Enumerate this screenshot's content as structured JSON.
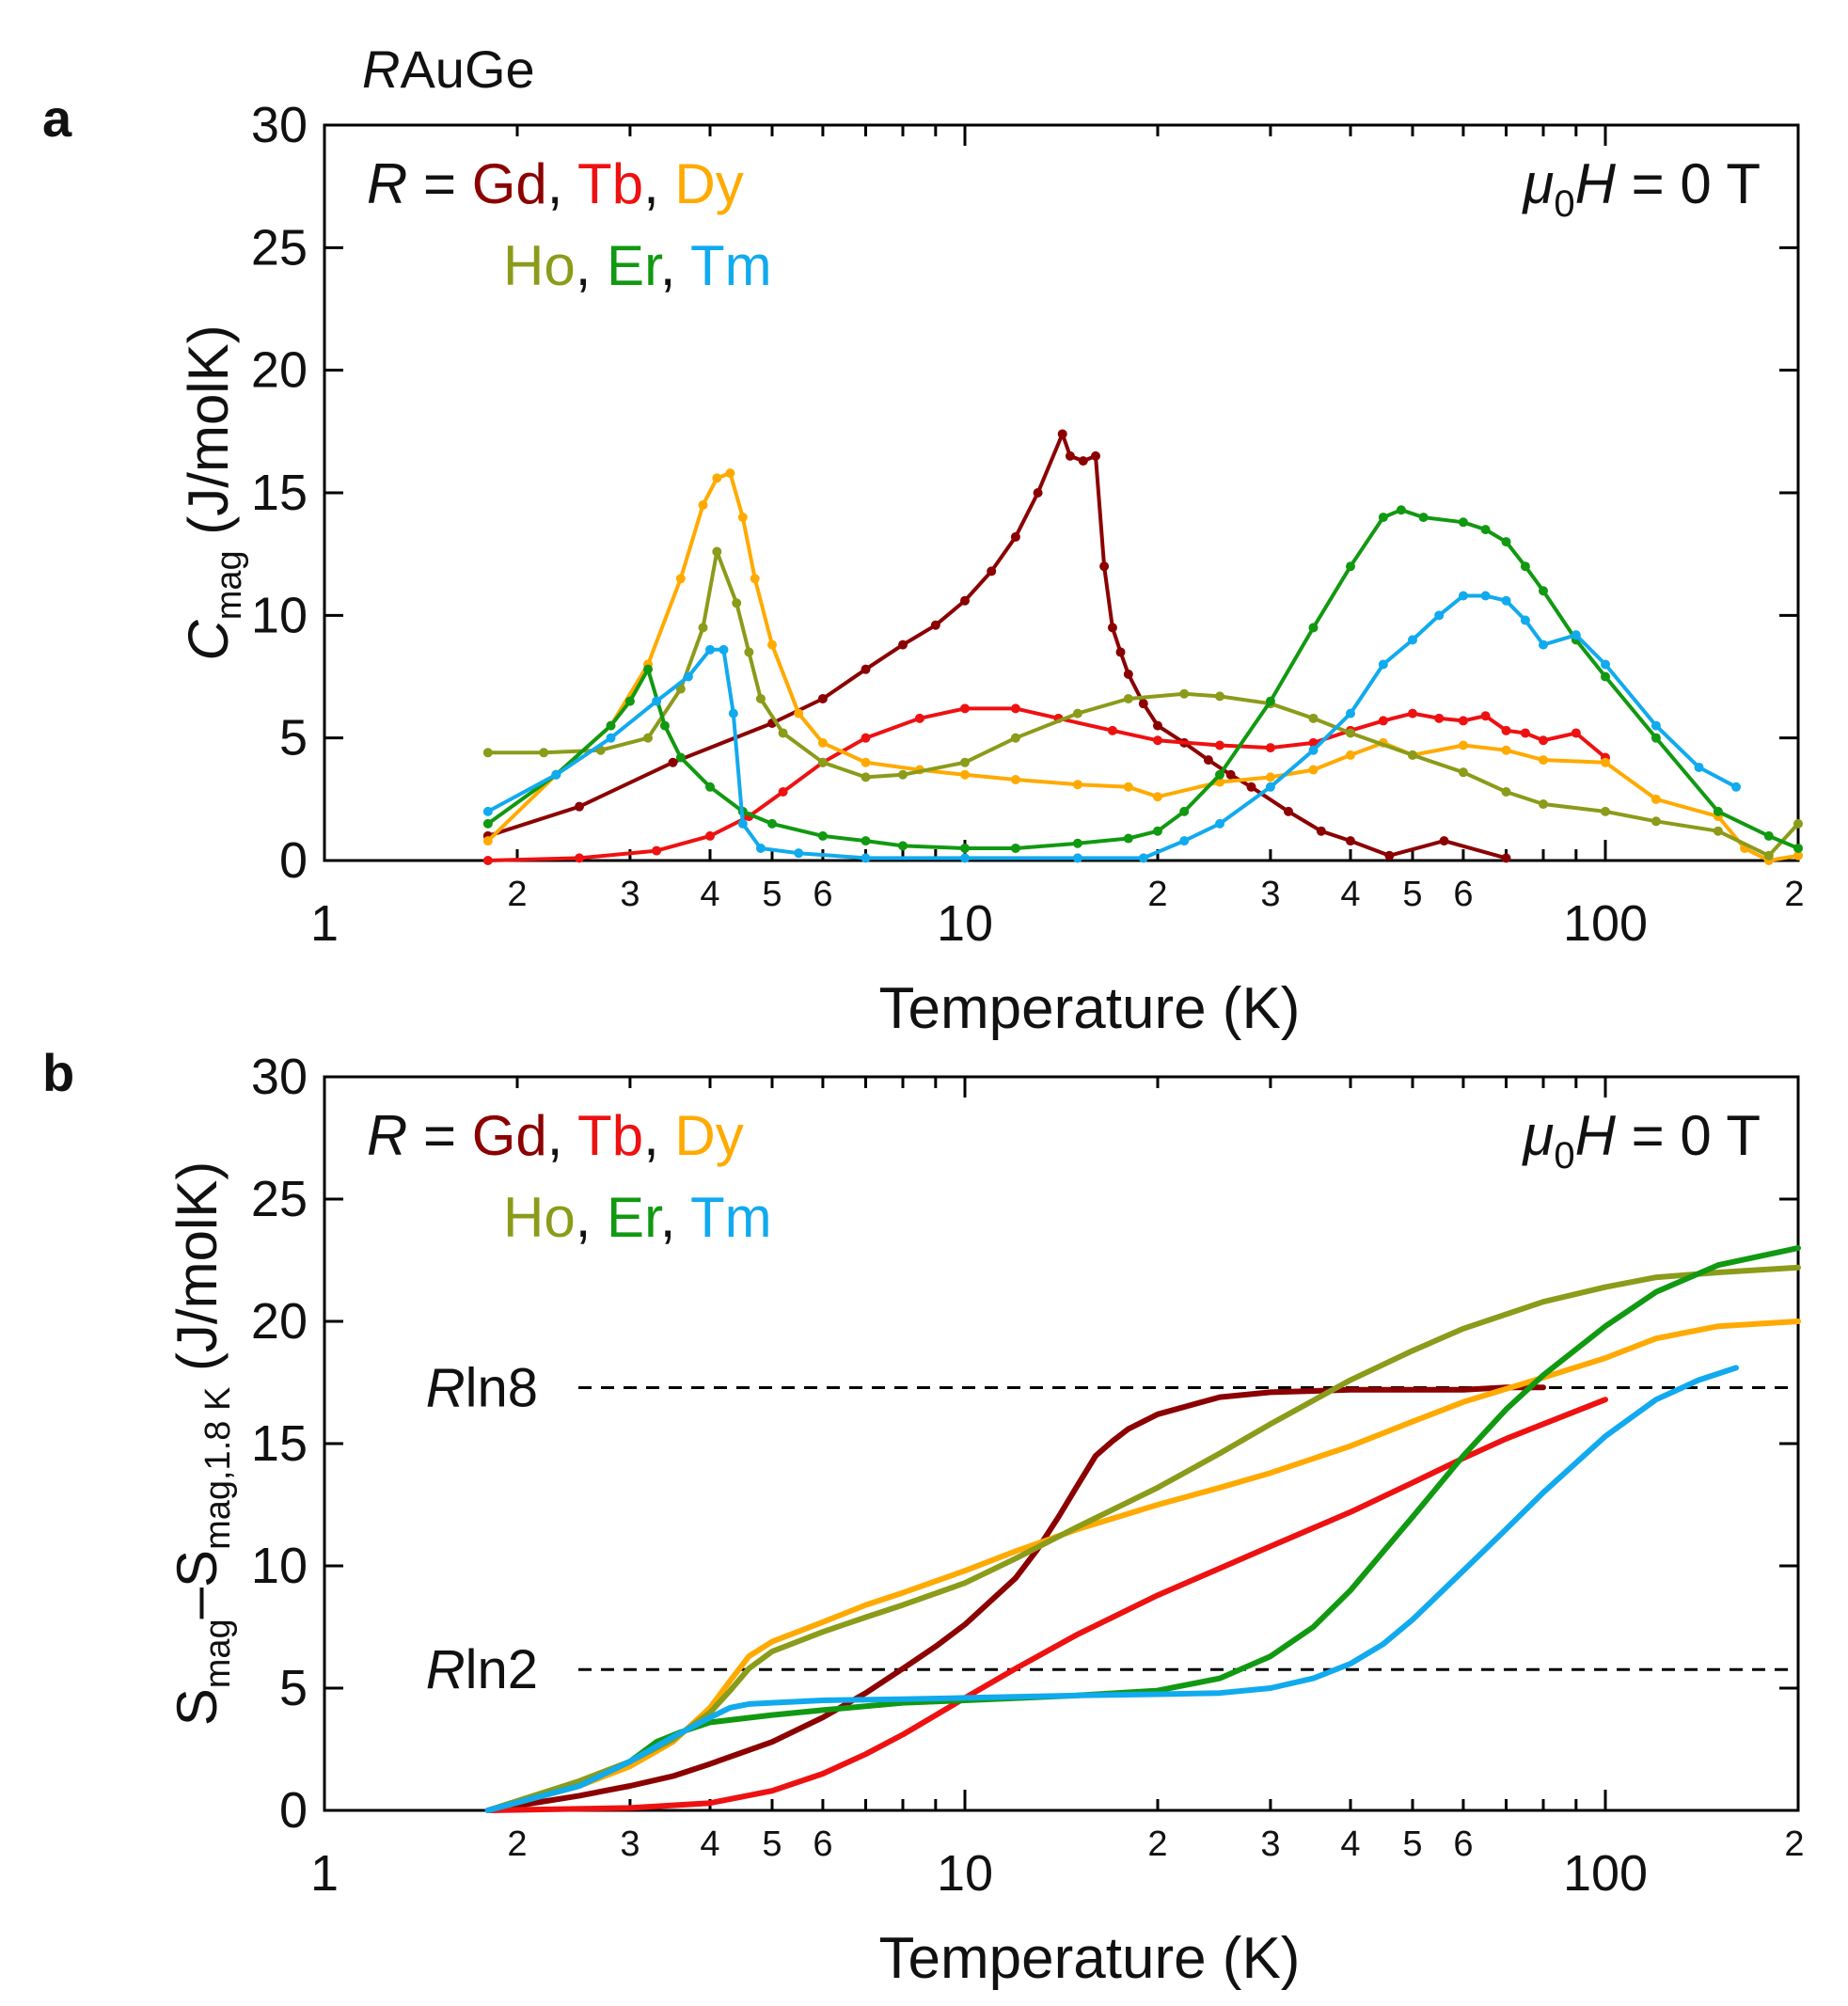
{
  "figure_title": {
    "prefix": "R",
    "rest": "AuGe"
  },
  "chart_data": [
    {
      "panel_label": "a",
      "type": "line",
      "xscale": "log",
      "xlim": [
        1,
        200
      ],
      "ylim": [
        0,
        30
      ],
      "xlabel": "Temperature (K)",
      "ylabel": {
        "main": "C",
        "sub": "mag",
        "unit": " (J/molK)"
      },
      "y_ticks": [
        "0",
        "5",
        "10",
        "15",
        "20",
        "25",
        "30"
      ],
      "x_major_ticks": [
        {
          "v": 1,
          "label": "1"
        },
        {
          "v": 10,
          "label": "10"
        },
        {
          "v": 100,
          "label": "100"
        }
      ],
      "x_minor_ticks": [
        {
          "v": 2,
          "label": "2"
        },
        {
          "v": 3,
          "label": "3"
        },
        {
          "v": 4,
          "label": "4"
        },
        {
          "v": 5,
          "label": "5"
        },
        {
          "v": 6,
          "label": "6"
        },
        {
          "v": 7,
          "label": ""
        },
        {
          "v": 8,
          "label": ""
        },
        {
          "v": 9,
          "label": ""
        },
        {
          "v": 20,
          "label": "2"
        },
        {
          "v": 30,
          "label": "3"
        },
        {
          "v": 40,
          "label": "4"
        },
        {
          "v": 50,
          "label": "5"
        },
        {
          "v": 60,
          "label": "6"
        },
        {
          "v": 70,
          "label": ""
        },
        {
          "v": 80,
          "label": ""
        },
        {
          "v": 90,
          "label": ""
        },
        {
          "v": 200,
          "label": "2"
        }
      ],
      "legend": {
        "prefix_italic": "R",
        "equals": " = ",
        "row1": [
          {
            "text": "Gd",
            "color": "#8B0000"
          },
          {
            "text": "Tb",
            "color": "#EE1111"
          },
          {
            "text": "Dy",
            "color": "#FFAA00"
          }
        ],
        "row2": [
          {
            "text": "Ho",
            "color": "#8B9B1A"
          },
          {
            "text": "Er",
            "color": "#119911"
          },
          {
            "text": "Tm",
            "color": "#11AAEE"
          }
        ],
        "sep": ", ",
        "position": "top-left"
      },
      "field_label": {
        "mu": "μ",
        "sub": "0",
        "H": "H",
        "rest": " = 0 T"
      },
      "series": [
        {
          "name": "Gd",
          "color": "#8B0000",
          "markers": true,
          "x": [
            1.8,
            2.5,
            3.5,
            5,
            6,
            7,
            8,
            9,
            10,
            11,
            12,
            13,
            14.2,
            14.6,
            15.3,
            16,
            16.5,
            17,
            17.5,
            18,
            19,
            20,
            22,
            24,
            26,
            28,
            32,
            36,
            40,
            46,
            56,
            70
          ],
          "y": [
            1.0,
            2.2,
            4.0,
            5.6,
            6.6,
            7.8,
            8.8,
            9.6,
            10.6,
            11.8,
            13.2,
            15.0,
            17.4,
            16.5,
            16.3,
            16.5,
            12.0,
            9.5,
            8.5,
            7.6,
            6.4,
            5.5,
            4.8,
            4.1,
            3.5,
            3.0,
            2.0,
            1.2,
            0.8,
            0.2,
            0.8,
            0.1
          ]
        },
        {
          "name": "Tb",
          "color": "#EE1111",
          "markers": true,
          "x": [
            1.8,
            2.5,
            3.3,
            4,
            4.6,
            5.2,
            6,
            7,
            8.5,
            10,
            12,
            14,
            17,
            20,
            25,
            30,
            35,
            40,
            45,
            50,
            55,
            60,
            65,
            70,
            75,
            80,
            90,
            100
          ],
          "y": [
            0.0,
            0.1,
            0.4,
            1.0,
            1.8,
            2.8,
            4.0,
            5.0,
            5.8,
            6.2,
            6.2,
            5.8,
            5.3,
            4.9,
            4.7,
            4.6,
            4.8,
            5.3,
            5.7,
            6.0,
            5.8,
            5.7,
            5.9,
            5.3,
            5.2,
            4.9,
            5.2,
            4.2
          ]
        },
        {
          "name": "Dy",
          "color": "#FFAA00",
          "markers": true,
          "x": [
            1.8,
            2.3,
            2.8,
            3.2,
            3.6,
            3.9,
            4.1,
            4.3,
            4.5,
            4.7,
            5.0,
            5.5,
            6,
            7,
            8.5,
            10,
            12,
            15,
            18,
            20,
            25,
            30,
            35,
            40,
            45,
            50,
            60,
            70,
            80,
            100,
            120,
            150,
            165,
            180,
            200
          ],
          "y": [
            0.8,
            3.5,
            5.5,
            8.0,
            11.5,
            14.5,
            15.6,
            15.8,
            14.0,
            11.5,
            8.8,
            6.0,
            4.8,
            4.0,
            3.7,
            3.5,
            3.3,
            3.1,
            3.0,
            2.6,
            3.2,
            3.4,
            3.7,
            4.3,
            4.8,
            4.3,
            4.7,
            4.5,
            4.1,
            4.0,
            2.5,
            1.8,
            0.5,
            0.0,
            0.2
          ]
        },
        {
          "name": "Ho",
          "color": "#8B9B1A",
          "markers": true,
          "x": [
            1.8,
            2.2,
            2.7,
            3.2,
            3.6,
            3.9,
            4.1,
            4.4,
            4.6,
            4.8,
            5.2,
            6,
            7,
            8,
            10,
            12,
            15,
            18,
            22,
            25,
            30,
            35,
            40,
            50,
            60,
            70,
            80,
            100,
            120,
            150,
            180,
            200
          ],
          "y": [
            4.4,
            4.4,
            4.5,
            5.0,
            7.0,
            9.5,
            12.6,
            10.5,
            8.5,
            6.6,
            5.2,
            4.0,
            3.4,
            3.5,
            4.0,
            5.0,
            6.0,
            6.6,
            6.8,
            6.7,
            6.4,
            5.8,
            5.2,
            4.3,
            3.6,
            2.8,
            2.3,
            2.0,
            1.6,
            1.2,
            0.2,
            1.5
          ]
        },
        {
          "name": "Er",
          "color": "#119911",
          "markers": true,
          "x": [
            1.8,
            2.3,
            2.8,
            3.0,
            3.2,
            3.4,
            3.6,
            4.0,
            4.5,
            5,
            6,
            7,
            8,
            10,
            12,
            15,
            18,
            20,
            22,
            25,
            30,
            35,
            40,
            45,
            48,
            52,
            60,
            65,
            70,
            75,
            80,
            90,
            100,
            120,
            150,
            180,
            200
          ],
          "y": [
            1.5,
            3.5,
            5.5,
            6.5,
            7.8,
            5.5,
            4.2,
            3.0,
            2.0,
            1.5,
            1.0,
            0.8,
            0.6,
            0.5,
            0.5,
            0.7,
            0.9,
            1.2,
            2.0,
            3.5,
            6.5,
            9.5,
            12.0,
            14.0,
            14.3,
            14.0,
            13.8,
            13.5,
            13.0,
            12.0,
            11.0,
            9.0,
            7.5,
            5.0,
            2.0,
            1.0,
            0.5
          ]
        },
        {
          "name": "Tm",
          "color": "#11AAEE",
          "markers": true,
          "x": [
            1.8,
            2.3,
            2.8,
            3.3,
            3.7,
            4.0,
            4.2,
            4.35,
            4.5,
            4.8,
            5.5,
            7,
            10,
            15,
            19,
            22,
            25,
            30,
            35,
            40,
            45,
            50,
            55,
            60,
            65,
            70,
            75,
            80,
            90,
            100,
            120,
            140,
            160
          ],
          "y": [
            2.0,
            3.5,
            5.0,
            6.5,
            7.5,
            8.6,
            8.6,
            6.0,
            1.5,
            0.5,
            0.3,
            0.1,
            0.1,
            0.1,
            0.1,
            0.8,
            1.5,
            3.0,
            4.5,
            6.0,
            8.0,
            9.0,
            10.0,
            10.8,
            10.8,
            10.6,
            9.8,
            8.8,
            9.2,
            8.0,
            5.5,
            3.8,
            3.0
          ]
        }
      ]
    },
    {
      "panel_label": "b",
      "type": "line",
      "xscale": "log",
      "xlim": [
        1,
        200
      ],
      "ylim": [
        0,
        30
      ],
      "xlabel": "Temperature (K)",
      "ylabel": {
        "s1": "S",
        "sub1": "mag",
        "minus": "–",
        "s2": "S",
        "sub2": "mag,1.8 K",
        "unit": " (J/molK)"
      },
      "y_ticks": [
        "0",
        "5",
        "10",
        "15",
        "20",
        "25",
        "30"
      ],
      "x_major_ticks": [
        {
          "v": 1,
          "label": "1"
        },
        {
          "v": 10,
          "label": "10"
        },
        {
          "v": 100,
          "label": "100"
        }
      ],
      "x_minor_ticks": [
        {
          "v": 2,
          "label": "2"
        },
        {
          "v": 3,
          "label": "3"
        },
        {
          "v": 4,
          "label": "4"
        },
        {
          "v": 5,
          "label": "5"
        },
        {
          "v": 6,
          "label": "6"
        },
        {
          "v": 7,
          "label": ""
        },
        {
          "v": 8,
          "label": ""
        },
        {
          "v": 9,
          "label": ""
        },
        {
          "v": 20,
          "label": "2"
        },
        {
          "v": 30,
          "label": "3"
        },
        {
          "v": 40,
          "label": "4"
        },
        {
          "v": 50,
          "label": "5"
        },
        {
          "v": 60,
          "label": "6"
        },
        {
          "v": 70,
          "label": ""
        },
        {
          "v": 80,
          "label": ""
        },
        {
          "v": 90,
          "label": ""
        },
        {
          "v": 200,
          "label": "2"
        }
      ],
      "legend": {
        "prefix_italic": "R",
        "equals": " = ",
        "row1": [
          {
            "text": "Gd",
            "color": "#8B0000"
          },
          {
            "text": "Tb",
            "color": "#EE1111"
          },
          {
            "text": "Dy",
            "color": "#FFAA00"
          }
        ],
        "row2": [
          {
            "text": "Ho",
            "color": "#8B9B1A"
          },
          {
            "text": "Er",
            "color": "#119911"
          },
          {
            "text": "Tm",
            "color": "#11AAEE"
          }
        ],
        "sep": ", ",
        "position": "top-left"
      },
      "field_label": {
        "mu": "μ",
        "sub": "0",
        "H": "H",
        "rest": " = 0 T"
      },
      "reference_lines": [
        {
          "label_italic": "R",
          "label_rest": "ln8",
          "y": 17.29
        },
        {
          "label_italic": "R",
          "label_rest": "ln2",
          "y": 5.76
        }
      ],
      "series": [
        {
          "name": "Gd",
          "color": "#8B0000",
          "markers": false,
          "x": [
            1.8,
            2.5,
            3,
            3.5,
            4,
            5,
            6,
            7,
            8,
            9,
            10,
            12,
            13,
            14,
            15,
            16,
            17,
            18,
            20,
            25,
            30,
            40,
            50,
            60,
            70,
            80
          ],
          "y": [
            0.0,
            0.6,
            1.0,
            1.4,
            1.9,
            2.8,
            3.8,
            4.8,
            5.8,
            6.7,
            7.6,
            9.5,
            10.7,
            12.0,
            13.3,
            14.5,
            15.1,
            15.6,
            16.2,
            16.9,
            17.1,
            17.2,
            17.2,
            17.2,
            17.3,
            17.3
          ]
        },
        {
          "name": "Tb",
          "color": "#EE1111",
          "markers": false,
          "x": [
            1.8,
            3,
            4,
            5,
            6,
            7,
            8,
            10,
            12,
            15,
            20,
            25,
            30,
            40,
            50,
            60,
            70,
            80,
            100
          ],
          "y": [
            0.0,
            0.1,
            0.3,
            0.8,
            1.5,
            2.3,
            3.1,
            4.6,
            5.8,
            7.2,
            8.8,
            9.9,
            10.8,
            12.2,
            13.4,
            14.4,
            15.2,
            15.8,
            16.8
          ]
        },
        {
          "name": "Dy",
          "color": "#FFAA00",
          "markers": false,
          "x": [
            1.8,
            2.5,
            3,
            3.5,
            4,
            4.3,
            4.6,
            5,
            6,
            7,
            8,
            10,
            12,
            15,
            20,
            25,
            30,
            40,
            50,
            60,
            80,
            100,
            120,
            150,
            200
          ],
          "y": [
            0.0,
            1.0,
            1.8,
            2.8,
            4.2,
            5.3,
            6.3,
            6.9,
            7.7,
            8.4,
            8.9,
            9.8,
            10.6,
            11.5,
            12.5,
            13.2,
            13.8,
            14.9,
            15.9,
            16.7,
            17.7,
            18.5,
            19.3,
            19.8,
            20.0
          ]
        },
        {
          "name": "Ho",
          "color": "#8B9B1A",
          "markers": false,
          "x": [
            1.8,
            2.5,
            3,
            3.5,
            4,
            4.3,
            4.6,
            5,
            6,
            7,
            8,
            10,
            12,
            15,
            20,
            25,
            30,
            40,
            50,
            60,
            80,
            100,
            120,
            150,
            200
          ],
          "y": [
            0.0,
            1.2,
            2.0,
            2.9,
            4.0,
            4.9,
            5.8,
            6.5,
            7.3,
            7.9,
            8.4,
            9.3,
            10.3,
            11.6,
            13.2,
            14.6,
            15.8,
            17.6,
            18.8,
            19.7,
            20.8,
            21.4,
            21.8,
            22.0,
            22.2
          ]
        },
        {
          "name": "Er",
          "color": "#119911",
          "markers": false,
          "x": [
            1.8,
            2.5,
            3,
            3.3,
            3.6,
            4,
            5,
            6,
            8,
            10,
            15,
            20,
            25,
            30,
            35,
            40,
            50,
            60,
            70,
            80,
            100,
            120,
            150,
            200
          ],
          "y": [
            0.0,
            1.0,
            2.0,
            2.8,
            3.2,
            3.6,
            3.9,
            4.1,
            4.4,
            4.5,
            4.7,
            4.9,
            5.4,
            6.3,
            7.5,
            9.0,
            12.0,
            14.5,
            16.4,
            17.8,
            19.8,
            21.2,
            22.3,
            23.0
          ]
        },
        {
          "name": "Tm",
          "color": "#11AAEE",
          "markers": false,
          "x": [
            1.8,
            2.5,
            3,
            3.5,
            4,
            4.3,
            4.6,
            5,
            6,
            8,
            10,
            15,
            20,
            25,
            30,
            35,
            40,
            45,
            50,
            60,
            70,
            80,
            100,
            120,
            140,
            160
          ],
          "y": [
            0.0,
            1.0,
            2.0,
            3.0,
            3.8,
            4.2,
            4.35,
            4.4,
            4.5,
            4.55,
            4.6,
            4.7,
            4.75,
            4.8,
            5.0,
            5.4,
            6.0,
            6.8,
            7.8,
            9.8,
            11.5,
            13.0,
            15.3,
            16.8,
            17.6,
            18.1
          ]
        }
      ]
    }
  ]
}
